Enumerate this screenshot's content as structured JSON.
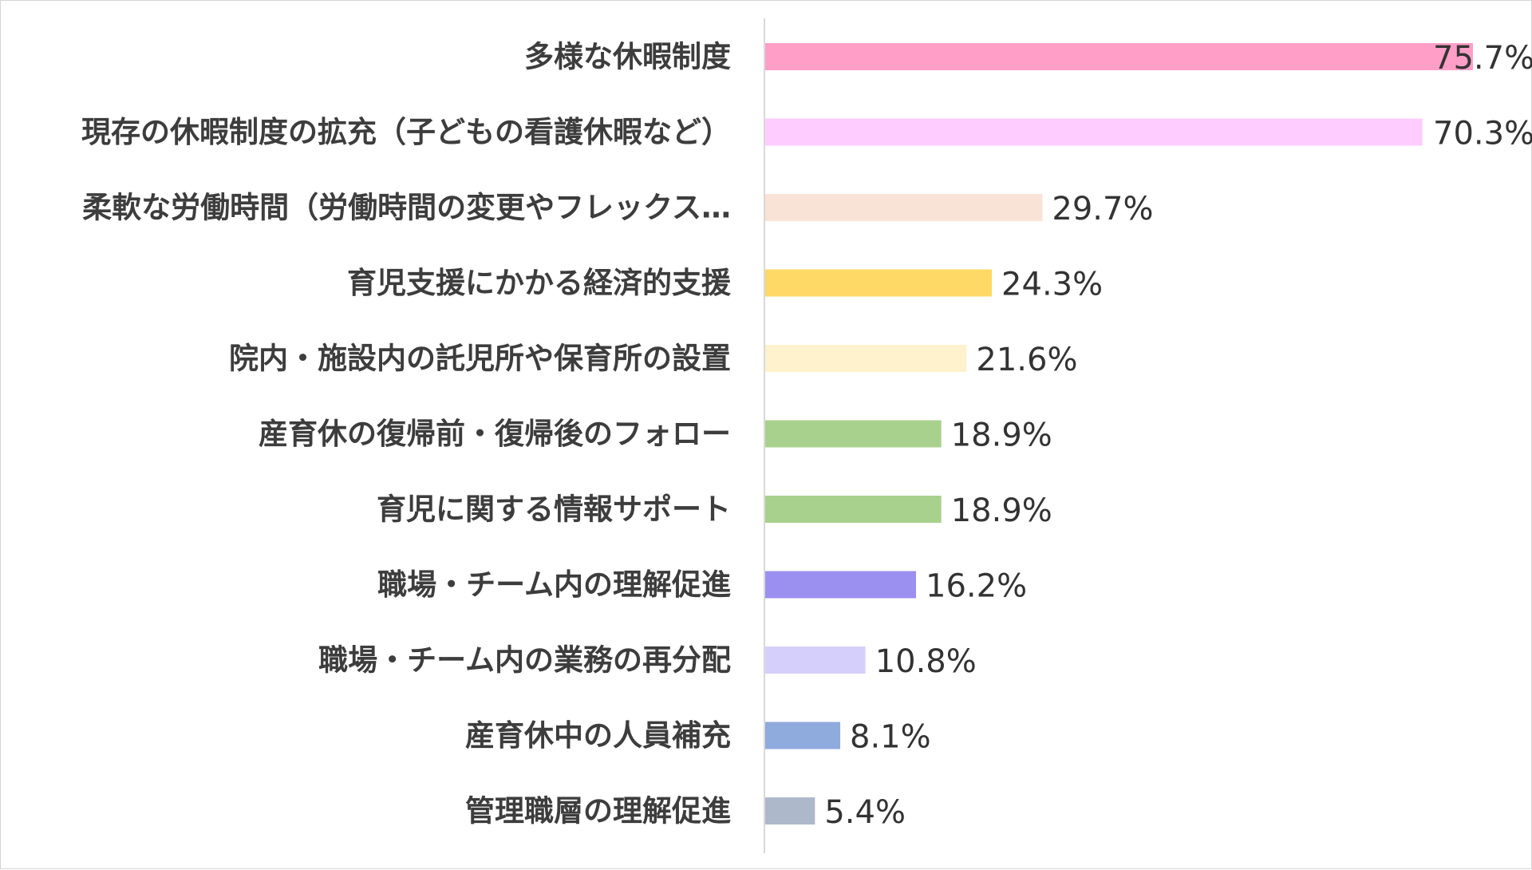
{
  "chart_data": {
    "type": "bar",
    "orientation": "horizontal",
    "categories": [
      "多様な休暇制度",
      "現存の休暇制度の拡充（子どもの看護休暇など）",
      "柔軟な労働時間（労働時間の変更やフレックス…",
      "育児支援にかかる経済的支援",
      "院内・施設内の託児所や保育所の設置",
      "産育休の復帰前・復帰後のフォロー",
      "育児に関する情報サポート",
      "職場・チーム内の理解促進",
      "職場・チーム内の業務の再分配",
      "産育休中の人員補充",
      "管理職層の理解促進"
    ],
    "values": [
      75.7,
      70.3,
      29.7,
      24.3,
      21.6,
      18.9,
      18.9,
      16.2,
      10.8,
      8.1,
      5.4
    ],
    "value_labels": [
      "75.7%",
      "70.3%",
      "29.7%",
      "24.3%",
      "21.6%",
      "18.9%",
      "18.9%",
      "16.2%",
      "10.8%",
      "8.1%",
      "5.4%"
    ],
    "colors": [
      "#ff9fc8",
      "#ffccff",
      "#f9e2d6",
      "#ffd966",
      "#fff2cc",
      "#a9d18e",
      "#a9d18e",
      "#9b8ff0",
      "#d5cffb",
      "#8faadc",
      "#adb9ca"
    ],
    "xlim": [
      0,
      75.7
    ],
    "grid": false,
    "legend": "none",
    "title": "",
    "xlabel": "",
    "ylabel": ""
  }
}
